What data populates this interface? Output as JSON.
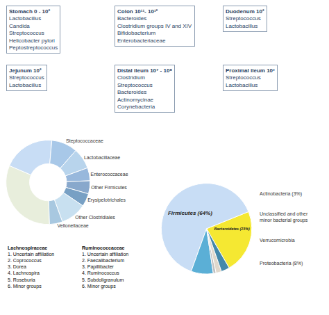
{
  "chart_data": [
    {
      "type": "text",
      "annotations": [
        {
          "title": "Stomach 0 - 10²",
          "items": [
            "Lactobacillus",
            "Candida",
            "Streptococcus",
            "Helicobacter pylori",
            "Peptostreptococcus"
          ]
        },
        {
          "title": "Colon 10¹¹- 10¹²",
          "items": [
            "Bacteroides",
            "Clostridium groups IV and XIV",
            "Bifidobacterium",
            "Enterobacteriaceae"
          ]
        },
        {
          "title": "Duodenum 10²",
          "items": [
            "Streptococcus",
            "Lactobacillus"
          ]
        },
        {
          "title": "Jejunum 10²",
          "items": [
            "Streptococcus",
            "Lactobacillus"
          ]
        },
        {
          "title": "Distal ileum 10⁷ - 10⁸",
          "items": [
            "Clostridium",
            "Streptococcus",
            "Bacteroides",
            "Actinomycinae",
            "Corynebacteria"
          ]
        },
        {
          "title": "Proximal ileum 10³",
          "items": [
            "Streptococcus",
            "Lactobacillus"
          ]
        }
      ]
    },
    {
      "type": "pie",
      "categories": [
        "Bacteroidetes (23%)",
        "Firmicutes (64%)",
        null,
        null,
        null,
        null
      ],
      "values": [
        23,
        64,
        8,
        1,
        2,
        3
      ],
      "colors": [
        "#f5e832",
        "#c8ddf5",
        "#5bafd6",
        "#c0c0c0",
        "#e0d8cc",
        "#4488aa"
      ],
      "annotations": [
        "Actinobacteria (3%)",
        "Unclassified and other\nminor bacterial groups",
        "Verrucomicrobia",
        "Proteobacteria (8%)"
      ]
    },
    {
      "type": "pie",
      "categories": [
        null,
        null,
        "Steptococcaceae",
        "Lactobacillaceae",
        "Enterococcaceae",
        "Other Firmicutes",
        "Erysipelotrichales",
        "Other Clostridiales",
        "Vellonellaceae"
      ],
      "values": [
        32,
        20,
        10,
        8,
        5,
        5,
        5,
        10,
        5
      ],
      "colors": [
        "#e8eedc",
        "#c8ddf5",
        "#a8c8e8",
        "#b8d4ec",
        "#98b8dc",
        "#88a8cc",
        "#78a0c4",
        "#c8e0f0",
        "#a8c8e0"
      ],
      "annotations": [
        {
          "title": "Lachnospiraceae",
          "items": [
            "1. Uncertain affiliation",
            "2. Coprococcus",
            "3. Dorea",
            "4. Lachnospira",
            "5. Roseburia",
            "6. Minor groups"
          ]
        },
        {
          "title": "Ruminococcaceae",
          "items": [
            "1. Uncertain affiliation",
            "2. Faecalibacterium",
            "3. Papillibacter",
            "4. Ruminococcus",
            "5. Subdoligranulum",
            "6. Minor groups"
          ]
        }
      ]
    }
  ]
}
